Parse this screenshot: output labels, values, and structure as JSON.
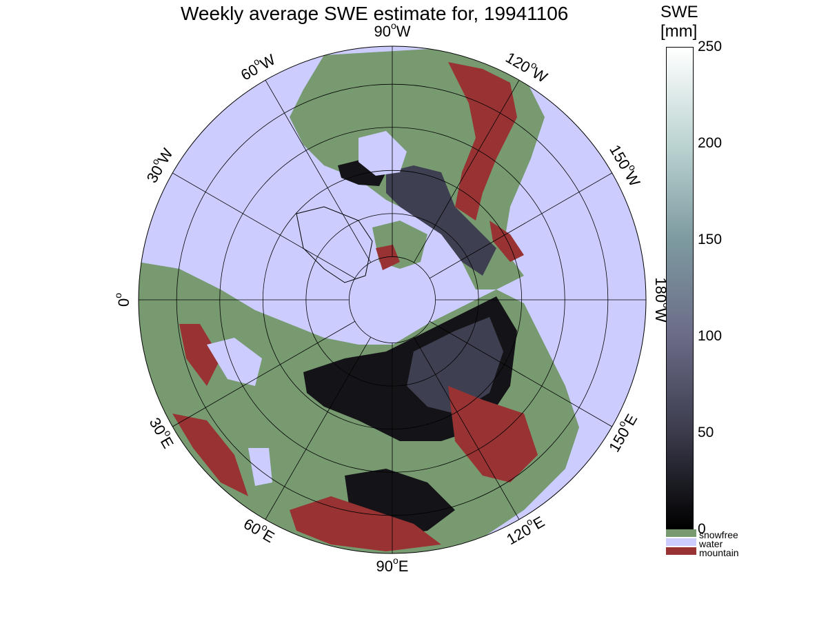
{
  "title": "Weekly average SWE estimate for, 19941106",
  "colorbar": {
    "title_line1": "SWE",
    "title_line2": "[mm]",
    "min": 0,
    "max": 250,
    "ticks": [
      "0",
      "50",
      "100",
      "150",
      "200",
      "250"
    ],
    "colors": [
      "#000000",
      "#3b3b4c",
      "#6b6b88",
      "#7d9aa0",
      "#bcd4d2",
      "#ffffff"
    ]
  },
  "legend": [
    {
      "label": "snowfree",
      "color": "#779a70"
    },
    {
      "label": "water",
      "color": "#ccccff"
    },
    {
      "label": "mountain",
      "color": "#993333"
    }
  ],
  "map": {
    "projection": "north polar stereographic",
    "meridian_labels": [
      {
        "deg": "90",
        "hemi": "W"
      },
      {
        "deg": "120",
        "hemi": "W"
      },
      {
        "deg": "150",
        "hemi": "W"
      },
      {
        "deg": "180",
        "hemi": "W"
      },
      {
        "deg": "150",
        "hemi": "E"
      },
      {
        "deg": "120",
        "hemi": "E"
      },
      {
        "deg": "90",
        "hemi": "E"
      },
      {
        "deg": "60",
        "hemi": "E"
      },
      {
        "deg": "30",
        "hemi": "E"
      },
      {
        "deg": "0",
        "hemi": ""
      },
      {
        "deg": "30",
        "hemi": "W"
      },
      {
        "deg": "60",
        "hemi": "W"
      }
    ],
    "colors": {
      "water": "#ccccff",
      "snowfree": "#779a70",
      "mountain": "#993333",
      "snow_low": "#141418",
      "snow_mid": "#3f3f52",
      "snow_high": "#6e6e8a"
    }
  }
}
